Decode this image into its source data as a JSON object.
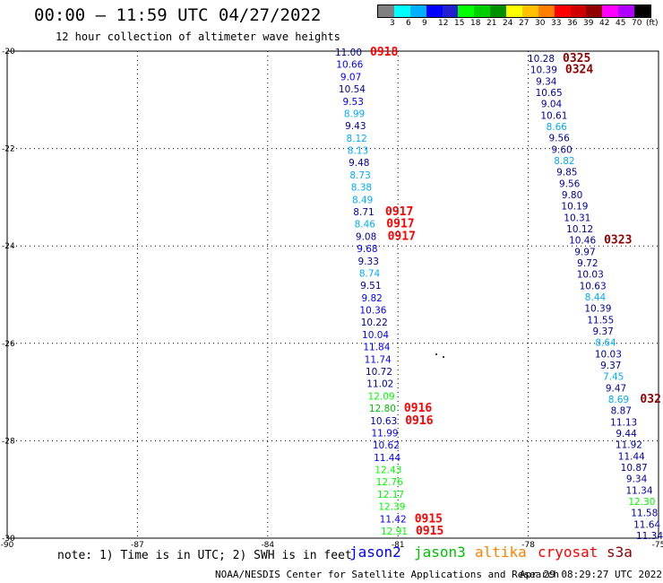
{
  "header": {
    "title": "00:00 – 11:59 UTC 04/27/2022",
    "subtitle": "12 hour collection of altimeter wave heights"
  },
  "legend": {
    "unit_label": "(ft)",
    "colors": [
      "#808080",
      "#00ffff",
      "#00b0ff",
      "#0000ff",
      "#2020d0",
      "#00ff00",
      "#00d000",
      "#009000",
      "#ffff00",
      "#ffc000",
      "#ff8000",
      "#ff0000",
      "#d00000",
      "#900000",
      "#ff00ff",
      "#b000ff",
      "#000000"
    ],
    "labels": [
      "3",
      "6",
      "9",
      "12",
      "15",
      "18",
      "21",
      "24",
      "27",
      "30",
      "33",
      "36",
      "39",
      "42",
      "45",
      "70"
    ]
  },
  "map": {
    "lon_labels": [
      "-90",
      "-87",
      "-84",
      "-81",
      "-78",
      "-75"
    ],
    "lat_labels": [
      "-20",
      "-22",
      "-24",
      "-26",
      "-28",
      "-30"
    ],
    "colors": {
      "jason2": "#0000ff",
      "jason3": "#00c000",
      "altika": "#ff8000",
      "cryosat": "#ff0000",
      "s3a": "#900000",
      "dark": "#00009a",
      "light": "#00aaff"
    },
    "track_west": [
      {
        "v": "11.00",
        "c": "#00009a",
        "time": "0918",
        "tc": "#ff0000"
      },
      {
        "v": "10.66",
        "c": "#0000ff"
      },
      {
        "v": "9.07",
        "c": "#0000ff"
      },
      {
        "v": "10.54",
        "c": "#00009a"
      },
      {
        "v": "9.53",
        "c": "#0000ff"
      },
      {
        "v": "8.99",
        "c": "#00aaff"
      },
      {
        "v": "9.43",
        "c": "#00009a"
      },
      {
        "v": "8.12",
        "c": "#00aaff"
      },
      {
        "v": "8.13",
        "c": "#00aaff"
      },
      {
        "v": "9.48",
        "c": "#00009a"
      },
      {
        "v": "8.73",
        "c": "#00aaff"
      },
      {
        "v": "8.38",
        "c": "#00aaff"
      },
      {
        "v": "8.49",
        "c": "#00aaff"
      },
      {
        "v": "8.71",
        "c": "#00009a",
        "time": "0917",
        "tc": "#ff0000"
      },
      {
        "v": "8.46",
        "c": "#00aaff",
        "time": "0917",
        "tc": "#ff0000"
      },
      {
        "v": "9.08",
        "c": "#00009a",
        "time": "0917",
        "tc": "#ff0000"
      },
      {
        "v": "9.68",
        "c": "#0000ff"
      },
      {
        "v": "9.33",
        "c": "#00009a"
      },
      {
        "v": "8.74",
        "c": "#00aaff"
      },
      {
        "v": "9.51",
        "c": "#00009a"
      },
      {
        "v": "9.82",
        "c": "#0000ff"
      },
      {
        "v": "10.36",
        "c": "#0000ff"
      },
      {
        "v": "10.22",
        "c": "#00009a"
      },
      {
        "v": "10.04",
        "c": "#0000ff"
      },
      {
        "v": "11.84",
        "c": "#0000ff"
      },
      {
        "v": "11.74",
        "c": "#0000ff"
      },
      {
        "v": "10.72",
        "c": "#00009a"
      },
      {
        "v": "11.02",
        "c": "#00009a"
      },
      {
        "v": "12.09",
        "c": "#00ff00"
      },
      {
        "v": "12.80",
        "c": "#00c000",
        "time": "0916",
        "tc": "#ff0000"
      },
      {
        "v": "10.63",
        "c": "#00009a",
        "time": "0916",
        "tc": "#ff0000"
      },
      {
        "v": "11.99",
        "c": "#0000ff"
      },
      {
        "v": "10.62",
        "c": "#0000ff"
      },
      {
        "v": "11.44",
        "c": "#0000ff"
      },
      {
        "v": "12.43",
        "c": "#00ff00"
      },
      {
        "v": "12.76",
        "c": "#00ff00"
      },
      {
        "v": "12.17",
        "c": "#00ff00"
      },
      {
        "v": "12.39",
        "c": "#00ff00"
      },
      {
        "v": "11.42",
        "c": "#0000ff",
        "time": "0915",
        "tc": "#ff0000"
      },
      {
        "v": "12.91",
        "c": "#00ff00",
        "time": "0915",
        "tc": "#ff0000"
      }
    ],
    "track_east": [
      {
        "v": "10.28",
        "c": "#00009a",
        "time": "0325",
        "tc": "#900000"
      },
      {
        "v": "10.39",
        "c": "#00009a",
        "time": "0324",
        "tc": "#900000"
      },
      {
        "v": "9.34",
        "c": "#00009a"
      },
      {
        "v": "10.65",
        "c": "#00009a"
      },
      {
        "v": "9.04",
        "c": "#00009a"
      },
      {
        "v": "10.61",
        "c": "#00009a"
      },
      {
        "v": "8.66",
        "c": "#00aaff"
      },
      {
        "v": "9.56",
        "c": "#00009a"
      },
      {
        "v": "9.60",
        "c": "#00009a"
      },
      {
        "v": "8.82",
        "c": "#00aaff"
      },
      {
        "v": "9.85",
        "c": "#00009a"
      },
      {
        "v": "9.56",
        "c": "#00009a"
      },
      {
        "v": "9.80",
        "c": "#00009a"
      },
      {
        "v": "10.19",
        "c": "#00009a"
      },
      {
        "v": "10.31",
        "c": "#00009a"
      },
      {
        "v": "10.12",
        "c": "#00009a"
      },
      {
        "v": "10.46",
        "c": "#00009a",
        "time": "0323",
        "tc": "#900000"
      },
      {
        "v": "9.97",
        "c": "#00009a"
      },
      {
        "v": "9.72",
        "c": "#00009a"
      },
      {
        "v": "10.03",
        "c": "#00009a"
      },
      {
        "v": "10.63",
        "c": "#00009a"
      },
      {
        "v": "8.44",
        "c": "#00aaff"
      },
      {
        "v": "10.39",
        "c": "#00009a"
      },
      {
        "v": "11.55",
        "c": "#00009a"
      },
      {
        "v": "9.37",
        "c": "#00009a"
      },
      {
        "v": "8.64",
        "c": "#00aaff"
      },
      {
        "v": "10.03",
        "c": "#00009a"
      },
      {
        "v": "9.37",
        "c": "#00009a"
      },
      {
        "v": "7.45",
        "c": "#00aaff"
      },
      {
        "v": "9.47",
        "c": "#00009a"
      },
      {
        "v": "8.69",
        "c": "#00aaff",
        "time": "032",
        "tc": "#900000"
      },
      {
        "v": "8.87",
        "c": "#00009a"
      },
      {
        "v": "11.13",
        "c": "#00009a"
      },
      {
        "v": "9.44",
        "c": "#00009a"
      },
      {
        "v": "11.92",
        "c": "#00009a"
      },
      {
        "v": "11.44",
        "c": "#00009a"
      },
      {
        "v": "10.87",
        "c": "#00009a"
      },
      {
        "v": "9.34",
        "c": "#00009a"
      },
      {
        "v": "11.34",
        "c": "#00009a"
      },
      {
        "v": "12.30",
        "c": "#00ff00"
      },
      {
        "v": "11.58",
        "c": "#00009a"
      },
      {
        "v": "11.64",
        "c": "#00009a"
      },
      {
        "v": "11.34",
        "c": "#00009a"
      }
    ]
  },
  "footer": {
    "note": "note: 1) Time is in UTC; 2) SWH is in feet",
    "satellites": [
      {
        "name": "jason2",
        "color": "#0000ff"
      },
      {
        "name": "jason3",
        "color": "#00c000"
      },
      {
        "name": "altika",
        "color": "#ff8000"
      },
      {
        "name": "cryosat",
        "color": "#ff0000"
      },
      {
        "name": "s3a",
        "color": "#900000"
      }
    ],
    "credit": "NOAA/NESDIS Center for Satellite Applications and Research",
    "timestamp": "Apr 29 08:29:27 UTC 2022"
  }
}
